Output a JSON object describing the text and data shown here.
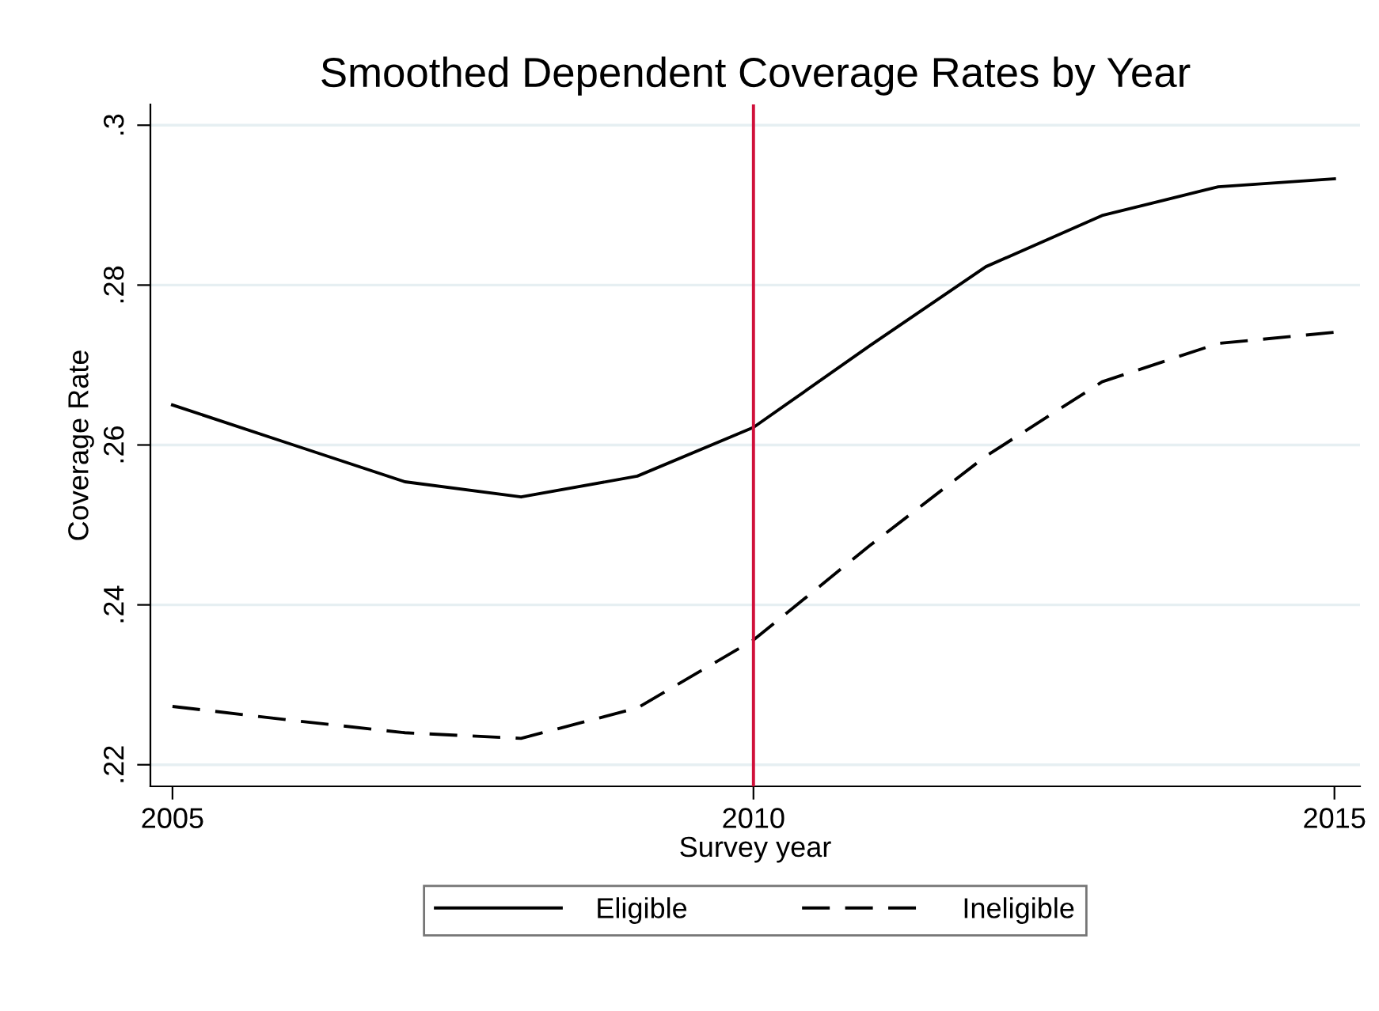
{
  "chart_data": {
    "type": "line",
    "title": "Smoothed Dependent Coverage Rates by Year",
    "xlabel": "Survey year",
    "ylabel": "Coverage Rate",
    "x": [
      2005,
      2006,
      2007,
      2008,
      2009,
      2010,
      2011,
      2012,
      2013,
      2014,
      2015
    ],
    "series": [
      {
        "name": "Eligible",
        "color": "#000000",
        "line_style": "solid",
        "values": [
          0.265,
          0.2602,
          0.2554,
          0.2535,
          0.2561,
          0.2622,
          0.2724,
          0.2823,
          0.2887,
          0.2923,
          0.2933
        ]
      },
      {
        "name": "Ineligible",
        "color": "#000000",
        "line_style": "dashed",
        "values": [
          0.2273,
          0.2256,
          0.224,
          0.2233,
          0.2271,
          0.2356,
          0.2474,
          0.2586,
          0.2679,
          0.2727,
          0.2741
        ]
      }
    ],
    "xlim": [
      2004.81,
      2015.22
    ],
    "xticks": [
      2005,
      2010,
      2015
    ],
    "ylim": [
      0.2173,
      0.3026
    ],
    "yticks": [
      {
        "value": 0.22,
        "label": ".22"
      },
      {
        "value": 0.24,
        "label": ".24"
      },
      {
        "value": 0.26,
        "label": ".26"
      },
      {
        "value": 0.28,
        "label": ".28"
      },
      {
        "value": 0.3,
        "label": ".3"
      }
    ],
    "ref_lines": [
      {
        "axis": "x",
        "value": 2010,
        "color": "#d0103a"
      }
    ],
    "grid": "y",
    "legend": "bottom",
    "marker": "none"
  }
}
